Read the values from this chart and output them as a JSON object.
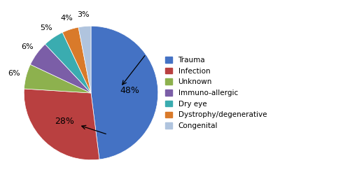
{
  "labels": [
    "Trauma",
    "Infection",
    "Unknown",
    "Immuno-allergic",
    "Dry eye",
    "Dystrophy/degenerative",
    "Congenital"
  ],
  "values": [
    48,
    28,
    6,
    6,
    5,
    4,
    3
  ],
  "colors": [
    "#4472C4",
    "#B94040",
    "#8DB14E",
    "#7B5EA7",
    "#3AACB0",
    "#D97A2A",
    "#B0C4DE"
  ],
  "startangle": 90,
  "figsize": [
    5.0,
    2.66
  ],
  "dpi": 100,
  "legend_fontsize": 7.5,
  "pct_fontsize": 9,
  "small_pct_fontsize": 8
}
